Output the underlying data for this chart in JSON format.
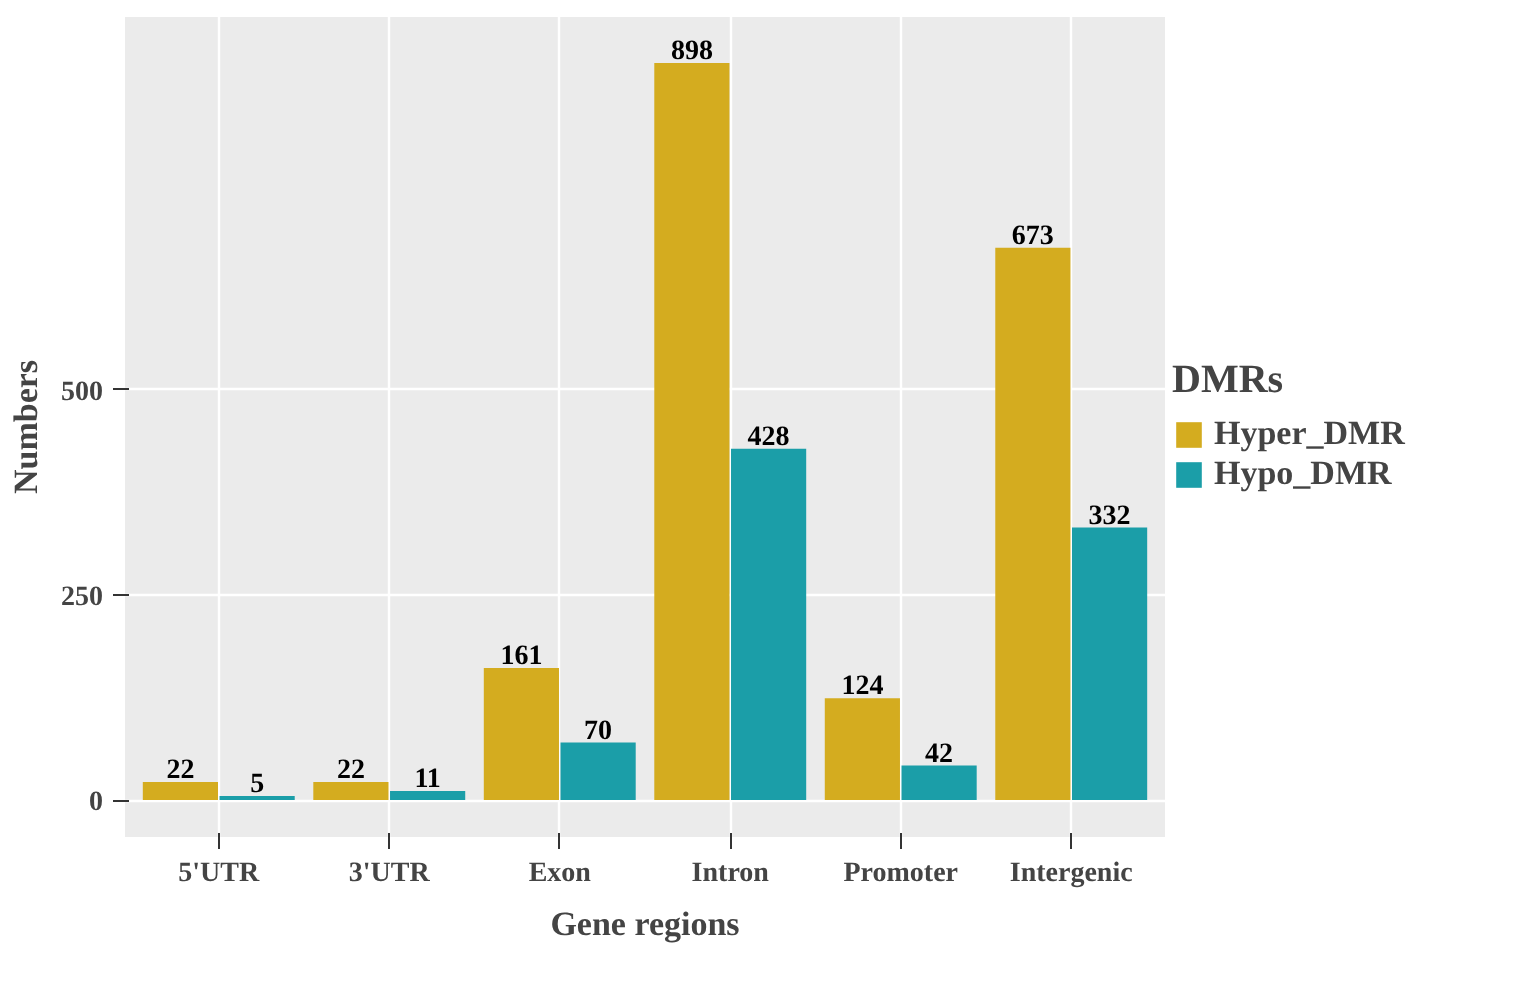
{
  "chart_data": {
    "type": "bar",
    "xlabel": "Gene regions",
    "ylabel": "Numbers",
    "legend_title": "DMRs",
    "categories": [
      "5'UTR",
      "3'UTR",
      "Exon",
      "Intron",
      "Promoter",
      "Intergenic"
    ],
    "series": [
      {
        "name": "Hyper_DMR",
        "color": "#d4ac1f",
        "values": [
          22,
          22,
          161,
          898,
          124,
          673
        ]
      },
      {
        "name": "Hypo_DMR",
        "color": "#1b9ea8",
        "values": [
          5,
          11,
          70,
          428,
          42,
          332
        ]
      }
    ],
    "ylim": [
      -45,
      954
    ],
    "yticks": [
      0,
      250,
      500
    ],
    "grid": true,
    "legend": "right",
    "data_labels": true
  }
}
